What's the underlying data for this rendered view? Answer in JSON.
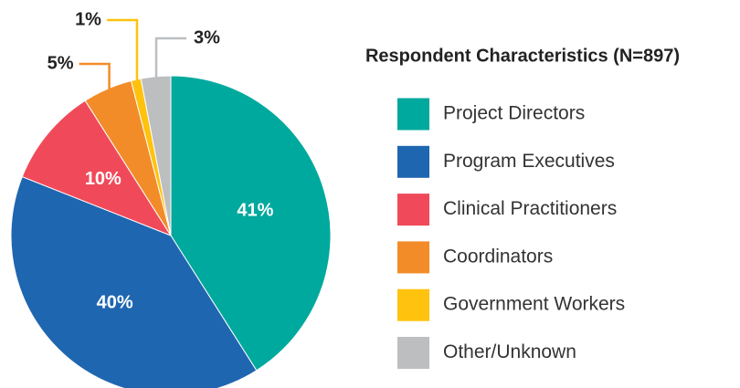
{
  "chart_data": {
    "type": "pie",
    "title": "Respondent Characteristics (N=897)",
    "categories": [
      "Project Directors",
      "Program Executives",
      "Clinical Practitioners",
      "Coordinators",
      "Government Workers",
      "Other/Unknown"
    ],
    "values": [
      41,
      40,
      10,
      5,
      1,
      3
    ],
    "value_labels": [
      "41%",
      "40%",
      "10%",
      "5%",
      "1%",
      "3%"
    ],
    "colors": [
      "#00a99d",
      "#1f66b0",
      "#f04a5a",
      "#f28c28",
      "#ffc20e",
      "#bcbec0"
    ]
  }
}
